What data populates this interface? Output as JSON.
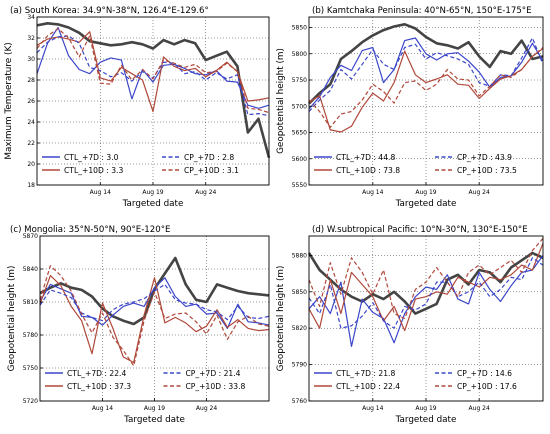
{
  "chart_data": [
    {
      "type": "line",
      "title": "(a) South Korea: 34.9°N-38°N, 126.4°E-129.6°",
      "xlabel": "Targeted date",
      "ylabel": "Maximum Temperature (K)",
      "x_ticks": [
        "Aug 14",
        "Aug 19",
        "Aug 24"
      ],
      "x_tick_index": [
        6,
        11,
        16
      ],
      "y_ticks": [
        "18",
        "20",
        "22",
        "24",
        "26",
        "28",
        "30",
        "32",
        "34"
      ],
      "ylim": [
        18,
        34
      ],
      "grid": true,
      "legend": [
        {
          "label": "CTL_+7D : 3.0",
          "series": 1
        },
        {
          "label": "CP_+7D : 2.8",
          "series": 3
        },
        {
          "label": "CTL_+10D : 3.3",
          "series": 2
        },
        {
          "label": "CP_+10D : 3.1",
          "series": 4
        }
      ],
      "series": [
        {
          "color": "#444444",
          "dash": "solid",
          "values": [
            33.2,
            33.4,
            33.3,
            33.0,
            32.5,
            31.7,
            31.5,
            31.3,
            31.4,
            31.6,
            31.4,
            31.0,
            31.8,
            31.4,
            31.8,
            31.5,
            29.9,
            30.3,
            30.7,
            29.3,
            23.0,
            24.3,
            20.6
          ]
        },
        {
          "color": "#3b46c9",
          "dash": "solid",
          "values": [
            28.6,
            31.5,
            33.0,
            30.3,
            29.0,
            28.6,
            29.7,
            30.1,
            29.9,
            26.2,
            29.0,
            27.8,
            29.4,
            29.5,
            29.1,
            28.6,
            28.5,
            28.9,
            27.9,
            27.8,
            25.6,
            25.3,
            25.6
          ]
        },
        {
          "color": "#b0483a",
          "dash": "solid",
          "values": [
            31.3,
            31.9,
            32.1,
            31.9,
            31.6,
            32.6,
            28.2,
            27.9,
            29.2,
            28.6,
            28.0,
            25.0,
            30.2,
            29.3,
            28.9,
            29.1,
            28.3,
            28.9,
            29.7,
            28.8,
            26.0,
            26.1,
            26.3
          ]
        },
        {
          "color": "#3b46c9",
          "dash": "dash",
          "values": [
            30.6,
            31.6,
            32.1,
            32.2,
            31.5,
            29.2,
            28.9,
            28.3,
            28.7,
            27.9,
            28.8,
            28.2,
            29.7,
            29.6,
            28.6,
            28.8,
            28.0,
            28.7,
            28.1,
            28.5,
            24.7,
            24.8,
            24.6
          ]
        },
        {
          "color": "#b0483a",
          "dash": "dash",
          "values": [
            31.0,
            32.2,
            32.9,
            32.0,
            30.2,
            32.2,
            27.7,
            27.6,
            29.4,
            28.0,
            29.0,
            28.1,
            29.9,
            29.6,
            29.2,
            29.5,
            28.7,
            28.8,
            29.6,
            28.8,
            25.3,
            25.2,
            24.9
          ]
        }
      ]
    },
    {
      "type": "line",
      "title": "(b) Kamtchaka Peninsula: 40°N-65°N, 150°E-175°E",
      "xlabel": "Targeted date",
      "ylabel": "Geopotential height (m)",
      "x_ticks": [
        "Aug 14",
        "Aug 19",
        "Aug 24"
      ],
      "x_tick_index": [
        6,
        11,
        16
      ],
      "y_ticks": [
        "5550",
        "5600",
        "5650",
        "5700",
        "5750",
        "5800",
        "5850"
      ],
      "ylim": [
        5550,
        5870
      ],
      "grid": true,
      "legend": [
        {
          "label": "CTL_+7D : 44.8",
          "series": 1
        },
        {
          "label": "CP_+7D : 43.9",
          "series": 3
        },
        {
          "label": "CTL_+10D : 73.8",
          "series": 2
        },
        {
          "label": "CP_+10D : 73.5",
          "series": 4
        }
      ],
      "series": [
        {
          "color": "#444444",
          "dash": "solid",
          "values": [
            5705,
            5725,
            5742,
            5790,
            5805,
            5822,
            5835,
            5845,
            5852,
            5856,
            5848,
            5832,
            5820,
            5816,
            5810,
            5822,
            5795,
            5775,
            5805,
            5800,
            5825,
            5790,
            5795
          ]
        },
        {
          "color": "#3b46c9",
          "dash": "solid",
          "values": [
            5695,
            5718,
            5755,
            5778,
            5768,
            5806,
            5812,
            5745,
            5770,
            5825,
            5830,
            5800,
            5788,
            5800,
            5802,
            5786,
            5765,
            5736,
            5755,
            5758,
            5784,
            5820,
            5786
          ]
        },
        {
          "color": "#b0483a",
          "dash": "solid",
          "values": [
            5708,
            5720,
            5655,
            5651,
            5662,
            5698,
            5725,
            5710,
            5745,
            5805,
            5760,
            5745,
            5752,
            5760,
            5742,
            5740,
            5715,
            5734,
            5752,
            5758,
            5770,
            5795,
            5810
          ]
        },
        {
          "color": "#3b46c9",
          "dash": "dash",
          "values": [
            5690,
            5712,
            5730,
            5770,
            5752,
            5780,
            5808,
            5780,
            5770,
            5812,
            5818,
            5790,
            5802,
            5796,
            5790,
            5780,
            5745,
            5738,
            5760,
            5758,
            5792,
            5830,
            5780
          ]
        },
        {
          "color": "#b0483a",
          "dash": "dash",
          "values": [
            5712,
            5690,
            5660,
            5685,
            5690,
            5712,
            5742,
            5728,
            5706,
            5745,
            5748,
            5730,
            5742,
            5770,
            5752,
            5750,
            5720,
            5738,
            5760,
            5755,
            5770,
            5795,
            5812
          ]
        }
      ]
    },
    {
      "type": "line",
      "title": "(c) Mongolia: 35°N-50°N, 90°E-120°E",
      "xlabel": "Targeted date",
      "ylabel": "Geopotential height (m)",
      "x_ticks": [
        "Aug 14",
        "Aug 19",
        "Aug 24"
      ],
      "x_tick_index": [
        6,
        11,
        16
      ],
      "y_ticks": [
        "5720",
        "5750",
        "5780",
        "5810",
        "5840",
        "5870"
      ],
      "ylim": [
        5720,
        5870
      ],
      "grid": true,
      "legend": [
        {
          "label": "CTL_+7D : 22.4",
          "series": 1
        },
        {
          "label": "CP_+7D : 21.4",
          "series": 3
        },
        {
          "label": "CTL_+10D : 37.3",
          "series": 2
        },
        {
          "label": "CP_+10D : 33.8",
          "series": 4
        }
      ],
      "series": [
        {
          "color": "#444444",
          "dash": "solid",
          "values": [
            5818,
            5823,
            5827,
            5823,
            5821,
            5815,
            5804,
            5797,
            5793,
            5790,
            5796,
            5822,
            5836,
            5850,
            5826,
            5812,
            5810,
            5826,
            5823,
            5820,
            5818,
            5817,
            5816
          ]
        },
        {
          "color": "#3b46c9",
          "dash": "solid",
          "values": [
            5811,
            5826,
            5822,
            5818,
            5797,
            5796,
            5789,
            5798,
            5806,
            5809,
            5806,
            5823,
            5832,
            5815,
            5806,
            5808,
            5799,
            5800,
            5786,
            5808,
            5792,
            5791,
            5789
          ]
        },
        {
          "color": "#b0483a",
          "dash": "solid",
          "values": [
            5808,
            5834,
            5825,
            5806,
            5793,
            5763,
            5809,
            5786,
            5760,
            5755,
            5798,
            5832,
            5791,
            5796,
            5791,
            5783,
            5788,
            5803,
            5787,
            5794,
            5786,
            5784,
            5785
          ]
        },
        {
          "color": "#3b46c9",
          "dash": "dash",
          "values": [
            5807,
            5821,
            5818,
            5814,
            5800,
            5796,
            5793,
            5803,
            5808,
            5810,
            5813,
            5820,
            5826,
            5812,
            5809,
            5808,
            5803,
            5801,
            5794,
            5806,
            5796,
            5795,
            5797
          ]
        },
        {
          "color": "#b0483a",
          "dash": "dash",
          "values": [
            5812,
            5843,
            5834,
            5820,
            5799,
            5782,
            5800,
            5778,
            5766,
            5752,
            5793,
            5819,
            5795,
            5799,
            5800,
            5792,
            5781,
            5798,
            5776,
            5792,
            5797,
            5790,
            5788
          ]
        }
      ]
    },
    {
      "type": "line",
      "title": "(d) W.subtropical Pacific: 10°N-30°N, 130°E-150°E",
      "xlabel": "Targeted date",
      "ylabel": "Geopotential height (m)",
      "x_ticks": [
        "Aug 14",
        "Aug 19",
        "Aug 24"
      ],
      "x_tick_index": [
        6,
        11,
        16
      ],
      "y_ticks": [
        "5760",
        "5790",
        "5820",
        "5850",
        "5880"
      ],
      "ylim": [
        5760,
        5896
      ],
      "grid": true,
      "legend": [
        {
          "label": "CTL_+7D : 21.8",
          "series": 1
        },
        {
          "label": "CP_+7D : 14.6",
          "series": 3
        },
        {
          "label": "CTL_+10D : 22.4",
          "series": 2
        },
        {
          "label": "CP_+10D : 17.6",
          "series": 4
        }
      ],
      "series": [
        {
          "color": "#444444",
          "dash": "solid",
          "values": [
            5882,
            5868,
            5860,
            5852,
            5846,
            5842,
            5848,
            5844,
            5850,
            5842,
            5832,
            5836,
            5840,
            5860,
            5864,
            5856,
            5868,
            5866,
            5858,
            5870,
            5876,
            5882,
            5878
          ]
        },
        {
          "color": "#3b46c9",
          "dash": "solid",
          "values": [
            5836,
            5846,
            5832,
            5858,
            5805,
            5844,
            5833,
            5828,
            5808,
            5832,
            5846,
            5854,
            5852,
            5864,
            5844,
            5840,
            5866,
            5852,
            5842,
            5855,
            5866,
            5868,
            5880
          ]
        },
        {
          "color": "#b0483a",
          "dash": "solid",
          "values": [
            5836,
            5820,
            5860,
            5832,
            5866,
            5856,
            5846,
            5826,
            5838,
            5818,
            5844,
            5846,
            5850,
            5848,
            5862,
            5858,
            5854,
            5862,
            5860,
            5864,
            5872,
            5868,
            5890
          ]
        },
        {
          "color": "#3b46c9",
          "dash": "dash",
          "values": [
            5845,
            5832,
            5856,
            5820,
            5822,
            5830,
            5841,
            5826,
            5820,
            5838,
            5835,
            5840,
            5858,
            5858,
            5846,
            5850,
            5858,
            5846,
            5852,
            5862,
            5860,
            5878,
            5872
          ]
        },
        {
          "color": "#b0483a",
          "dash": "dash",
          "values": [
            5860,
            5838,
            5874,
            5848,
            5878,
            5866,
            5848,
            5868,
            5832,
            5828,
            5852,
            5858,
            5870,
            5858,
            5846,
            5866,
            5872,
            5864,
            5870,
            5876,
            5866,
            5884,
            5894
          ]
        }
      ]
    }
  ]
}
